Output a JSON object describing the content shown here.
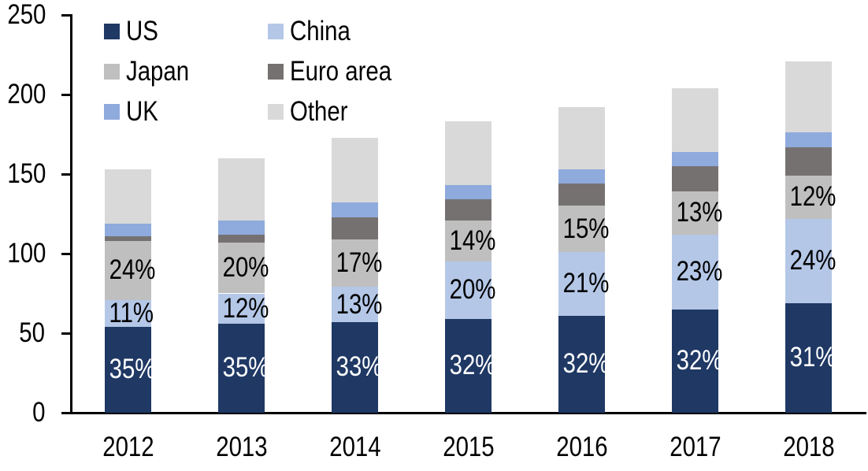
{
  "chart_data": {
    "type": "bar",
    "stacked": true,
    "title": "",
    "xlabel": "",
    "ylabel": "",
    "ylim": [
      0,
      250
    ],
    "yticks": [
      0,
      50,
      100,
      150,
      200,
      250
    ],
    "grid": false,
    "legend_position": "top-left, two columns",
    "categories": [
      "2012",
      "2013",
      "2014",
      "2015",
      "2016",
      "2017",
      "2018"
    ],
    "series": [
      {
        "name": "US",
        "color": "#1f3864",
        "values": [
          54,
          56,
          57,
          59,
          61,
          65,
          69
        ],
        "labels": [
          "35%",
          "35%",
          "33%",
          "32%",
          "32%",
          "32%",
          "31%"
        ],
        "label_color": "#ffffff"
      },
      {
        "name": "China",
        "color": "#b4c7e7",
        "values": [
          17,
          19,
          22,
          36,
          40,
          47,
          53
        ],
        "labels": [
          "11%",
          "12%",
          "13%",
          "20%",
          "21%",
          "23%",
          "24%"
        ],
        "label_color": "#000000"
      },
      {
        "name": "Japan",
        "color": "#bfbfbf",
        "values": [
          37,
          32,
          30,
          26,
          29,
          27,
          27
        ],
        "labels": [
          "24%",
          "20%",
          "17%",
          "14%",
          "15%",
          "13%",
          "12%"
        ],
        "label_color": "#000000"
      },
      {
        "name": "Euro area",
        "color": "#767171",
        "values": [
          3,
          5,
          14,
          13,
          14,
          16,
          18
        ],
        "labels": null,
        "label_color": null
      },
      {
        "name": "UK",
        "color": "#8faadc",
        "values": [
          8,
          9,
          9,
          9,
          9,
          9,
          9
        ],
        "labels": null,
        "label_color": null
      },
      {
        "name": "Other",
        "color": "#d9d9d9",
        "values": [
          34,
          39,
          41,
          40,
          39,
          40,
          45
        ],
        "labels": null,
        "label_color": null
      }
    ],
    "totals": [
      153,
      160,
      173,
      183,
      192,
      204,
      221
    ],
    "axis_color": "#000000"
  }
}
